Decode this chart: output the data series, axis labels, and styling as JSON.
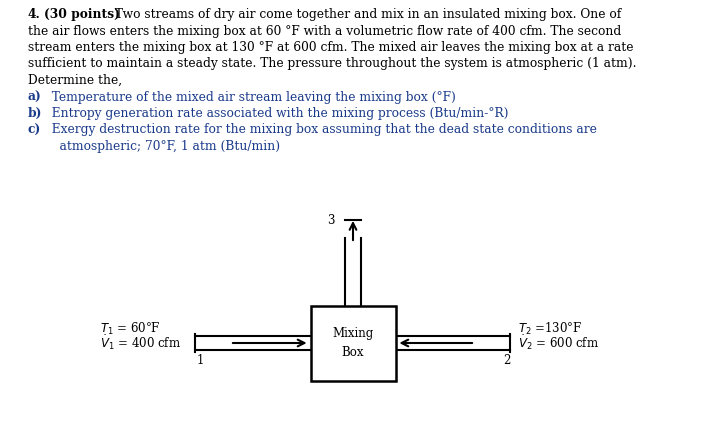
{
  "title_num": "4.",
  "title_points": "(30 points)",
  "problem_text_line1": " Two streams of dry air come together and mix in an insulated mixing box. One of",
  "problem_text_line2": "the air flows enters the mixing box at 60 °F with a volumetric flow rate of 400 cfm. The second",
  "problem_text_line3": "stream enters the mixing box at 130 °F at 600 cfm. The mixed air leaves the mixing box at a rate",
  "problem_text_line4": "sufficient to maintain a steady state. The pressure throughout the system is atmospheric (1 atm).",
  "problem_text_line5": "Determine the,",
  "part_a_label": "a)",
  "part_a": "  Temperature of the mixed air stream leaving the mixing box (°F)",
  "part_b_label": "b)",
  "part_b": "  Entropy generation rate associated with the mixing process (Btu/min-°R)",
  "part_c_label": "c)",
  "part_c_line1": "  Exergy destruction rate for the mixing box assuming that the dead state conditions are",
  "part_c_line2": "    atmospheric; 70°F, 1 atm (Btu/min)",
  "box_label_line1": "Mixing",
  "box_label_line2": "Box",
  "stream1_T": "$\\mathit{T}_1$ = 60°F",
  "stream1_V": "$\\mathit{\\dot{V}}_1$ = 400 cfm",
  "stream1_label": "1",
  "stream2_T": "$\\mathit{T}_2$ =130°F",
  "stream2_V": "$\\mathit{\\dot{V}}_2$ = 600 cfm",
  "stream2_label": "2",
  "stream3_label": "3",
  "text_color": "#000000",
  "blue_color": "#1a3a8a",
  "box_color": "#000000",
  "bg_color": "#ffffff",
  "font_size_body": 8.8,
  "font_size_label": 8.5,
  "font_size_diagram": 8.5
}
